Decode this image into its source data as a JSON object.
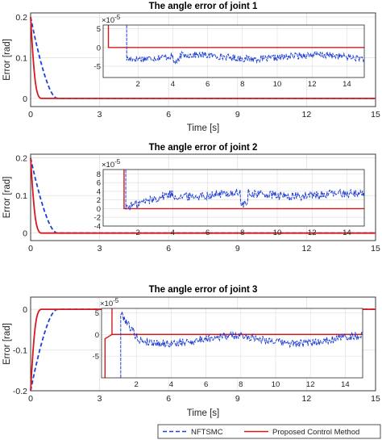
{
  "chart_data": [
    {
      "type": "line",
      "title": "The angle error of joint 1",
      "xlabel": "Time [s]",
      "ylabel": "Error [rad]",
      "xlim": [
        0,
        15
      ],
      "ylim": [
        -0.02,
        0.21
      ],
      "xticks": [
        0,
        3,
        6,
        9,
        12,
        15
      ],
      "yticks": [
        0,
        0.1,
        0.2
      ],
      "grid": true,
      "series": [
        {
          "name": "NFTSMC",
          "color": "#1f3fd6",
          "style": "dashed",
          "x": [
            0,
            0.1,
            0.2,
            0.3,
            0.4,
            0.5,
            0.6,
            0.7,
            0.8,
            0.9,
            1.0,
            1.1,
            1.2,
            15
          ],
          "y": [
            0.2,
            0.172,
            0.146,
            0.122,
            0.099,
            0.078,
            0.059,
            0.042,
            0.027,
            0.015,
            0.006,
            0.001,
            0,
            0
          ]
        },
        {
          "name": "Proposed Control Method",
          "color": "#d7191c",
          "style": "solid",
          "x": [
            0,
            0.05,
            0.1,
            0.15,
            0.2,
            0.25,
            0.3,
            0.35,
            0.4,
            0.45,
            15
          ],
          "y": [
            0.2,
            0.15,
            0.105,
            0.07,
            0.043,
            0.024,
            0.012,
            0.005,
            0.0015,
            0,
            0
          ]
        }
      ],
      "inset": {
        "xlim": [
          0,
          15
        ],
        "ylim": [
          -8,
          6
        ],
        "xticks": [
          2,
          4,
          6,
          8,
          10,
          12,
          14
        ],
        "yticks": [
          -5,
          0,
          5
        ],
        "exponent_label": "×10^-5"
      }
    },
    {
      "type": "line",
      "title": "The angle error of joint 2",
      "xlabel": "",
      "ylabel": "Error [rad]",
      "xlim": [
        0,
        15
      ],
      "ylim": [
        -0.02,
        0.21
      ],
      "xticks": [
        0,
        3,
        6,
        9,
        12,
        15
      ],
      "yticks": [
        0,
        0.1,
        0.2
      ],
      "grid": true,
      "series": [
        {
          "name": "NFTSMC",
          "color": "#1f3fd6",
          "style": "dashed",
          "x": [
            0,
            0.1,
            0.2,
            0.3,
            0.4,
            0.5,
            0.6,
            0.7,
            0.8,
            0.9,
            1.0,
            1.1,
            1.2,
            15
          ],
          "y": [
            0.2,
            0.172,
            0.146,
            0.122,
            0.099,
            0.078,
            0.059,
            0.042,
            0.027,
            0.015,
            0.006,
            0.001,
            0,
            0
          ]
        },
        {
          "name": "Proposed Control Method",
          "color": "#d7191c",
          "style": "solid",
          "x": [
            0,
            0.05,
            0.1,
            0.15,
            0.2,
            0.25,
            0.3,
            0.35,
            0.4,
            0.45,
            15
          ],
          "y": [
            0.2,
            0.15,
            0.105,
            0.07,
            0.043,
            0.024,
            0.012,
            0.005,
            0.0015,
            0,
            0
          ]
        }
      ],
      "inset": {
        "xlim": [
          0,
          15
        ],
        "ylim": [
          -4,
          9
        ],
        "xticks": [
          2,
          4,
          6,
          8,
          10,
          12,
          14
        ],
        "yticks": [
          -4,
          -2,
          0,
          2,
          4,
          6,
          8
        ],
        "exponent_label": "×10^-5"
      }
    },
    {
      "type": "line",
      "title": "The angle error of joint 3",
      "xlabel": "Time [s]",
      "ylabel": "Error [rad]",
      "xlim": [
        0,
        15
      ],
      "ylim": [
        -0.2,
        0.03
      ],
      "xticks": [
        0,
        3,
        6,
        9,
        12,
        15
      ],
      "yticks": [
        -0.2,
        -0.1,
        0
      ],
      "grid": true,
      "series": [
        {
          "name": "NFTSMC",
          "color": "#1f3fd6",
          "style": "dashed",
          "x": [
            0,
            0.1,
            0.2,
            0.3,
            0.4,
            0.5,
            0.6,
            0.7,
            0.8,
            0.9,
            1.0,
            1.1,
            1.2,
            15
          ],
          "y": [
            -0.2,
            -0.172,
            -0.146,
            -0.122,
            -0.099,
            -0.078,
            -0.059,
            -0.042,
            -0.027,
            -0.015,
            -0.006,
            -0.001,
            0,
            0
          ]
        },
        {
          "name": "Proposed Control Method",
          "color": "#d7191c",
          "style": "solid",
          "x": [
            0,
            0.05,
            0.1,
            0.15,
            0.2,
            0.25,
            0.3,
            0.35,
            0.4,
            0.45,
            15
          ],
          "y": [
            -0.2,
            -0.15,
            -0.105,
            -0.07,
            -0.043,
            -0.024,
            -0.012,
            -0.005,
            -0.0015,
            0,
            0
          ]
        }
      ],
      "inset": {
        "xlim": [
          0,
          15
        ],
        "ylim": [
          -10,
          6
        ],
        "xticks": [
          2,
          4,
          6,
          8,
          10,
          12,
          14
        ],
        "yticks": [
          -5,
          0,
          5
        ],
        "exponent_label": "×10^-5"
      }
    }
  ],
  "legend": {
    "placement": "bottom-right",
    "entries": [
      {
        "label": "NFTSMC",
        "color": "#1f3fd6",
        "style": "dashed"
      },
      {
        "label": "Proposed Control Method",
        "color": "#d7191c",
        "style": "solid"
      }
    ]
  }
}
